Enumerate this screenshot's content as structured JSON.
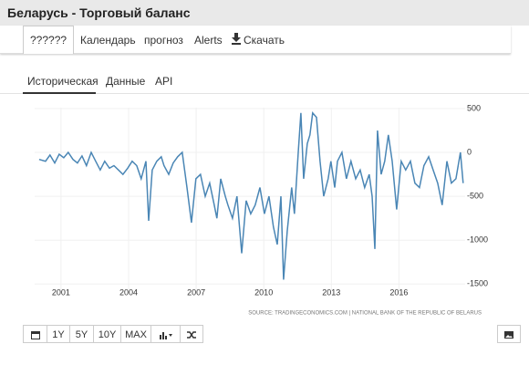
{
  "header": {
    "title": "Беларусь - Торговый баланс"
  },
  "nav": [
    "??????",
    "Календарь",
    "прогноз",
    "Alerts",
    "Скачать"
  ],
  "tabs": [
    "Историческая",
    "Данные",
    "API"
  ],
  "chart_data": {
    "type": "line",
    "color": "#4a86b5",
    "x": [
      2000.03,
      2000.31,
      2000.51,
      2000.72,
      2000.92,
      2001.12,
      2001.32,
      2001.53,
      2001.73,
      2001.93,
      2002.13,
      2002.34,
      2002.54,
      2002.74,
      2002.94,
      2003.15,
      2003.35,
      2003.55,
      2003.75,
      2003.96,
      2004.16,
      2004.36,
      2004.56,
      2004.77,
      2004.89,
      2005.05,
      2005.25,
      2005.45,
      2005.57,
      2005.78,
      2005.98,
      2006.18,
      2006.38,
      2006.59,
      2006.79,
      2006.99,
      2007.19,
      2007.4,
      2007.6,
      2007.8,
      2007.92,
      2008.09,
      2008.29,
      2008.41,
      2008.61,
      2008.81,
      2009.02,
      2009.22,
      2009.42,
      2009.62,
      2009.83,
      2010.03,
      2010.23,
      2010.43,
      2010.6,
      2010.76,
      2010.88,
      2011.04,
      2011.24,
      2011.36,
      2011.53,
      2011.65,
      2011.77,
      2011.93,
      2012.05,
      2012.17,
      2012.34,
      2012.5,
      2012.66,
      2012.86,
      2012.98,
      2013.15,
      2013.27,
      2013.47,
      2013.67,
      2013.87,
      2014.08,
      2014.28,
      2014.48,
      2014.68,
      2014.81,
      2014.93,
      2015.05,
      2015.21,
      2015.37,
      2015.53,
      2015.7,
      2015.9,
      2016.1,
      2016.3,
      2016.51,
      2016.71,
      2016.91,
      2017.11,
      2017.32,
      2017.52,
      2017.72,
      2017.92,
      2018.13,
      2018.33,
      2018.53,
      2018.73,
      2018.85
    ],
    "values": [
      -80,
      -100,
      -30,
      -120,
      -20,
      -60,
      0,
      -80,
      -120,
      -40,
      -150,
      0,
      -100,
      -200,
      -100,
      -180,
      -150,
      -200,
      -250,
      -180,
      -100,
      -150,
      -300,
      -100,
      -780,
      -200,
      -100,
      -50,
      -150,
      -250,
      -120,
      -50,
      0,
      -400,
      -800,
      -300,
      -250,
      -500,
      -350,
      -600,
      -750,
      -300,
      -500,
      -600,
      -750,
      -500,
      -1150,
      -550,
      -700,
      -600,
      -400,
      -700,
      -500,
      -850,
      -1050,
      -500,
      -1450,
      -900,
      -400,
      -700,
      0,
      450,
      -300,
      100,
      200,
      450,
      400,
      -100,
      -500,
      -300,
      -100,
      -400,
      -100,
      0,
      -300,
      -100,
      -300,
      -200,
      -400,
      -250,
      -500,
      -1100,
      250,
      -250,
      -100,
      200,
      -100,
      -650,
      -100,
      -200,
      -100,
      -350,
      -400,
      -150,
      -50,
      -200,
      -350,
      -600,
      -100,
      -350,
      -300,
      0,
      -350
    ],
    "xlim": [
      1999.83,
      2018.94
    ],
    "xticks": [
      2001,
      2004,
      2007,
      2010,
      2013,
      2016
    ],
    "ylim": [
      -1570,
      510
    ],
    "yticks": [
      500,
      0,
      -500,
      -1000,
      -1500
    ],
    "grid": true
  },
  "source": "SOURCE: TRADINGECONOMICS.COM | NATIONAL BANK OF THE REPUBLIC OF BELARUS",
  "buttons": [
    "1Y",
    "5Y",
    "10Y",
    "MAX"
  ]
}
